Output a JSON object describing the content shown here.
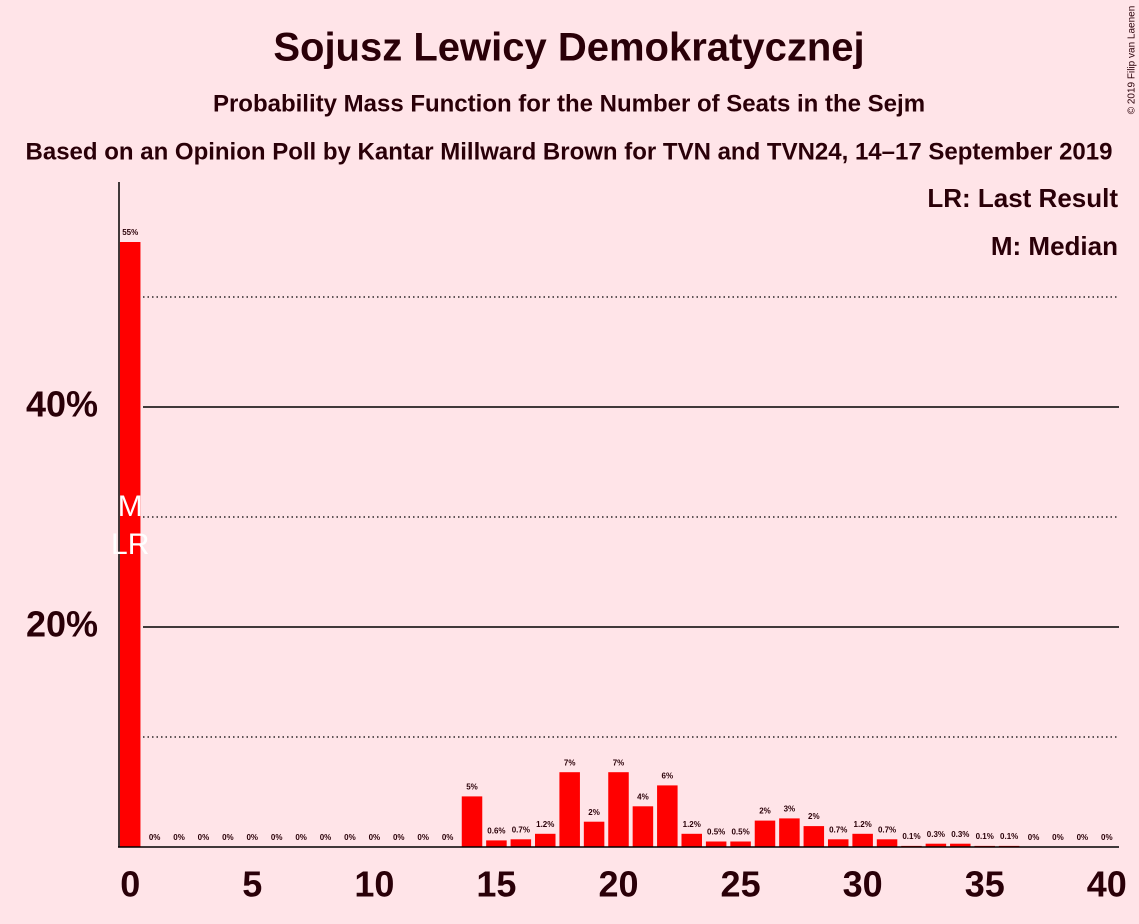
{
  "chart_data": {
    "type": "bar",
    "title": "Sojusz Lewicy Demokratycznej",
    "subtitle": "Probability Mass Function for the Number of Seats in the Sejm",
    "subtitle2": "Based on an Opinion Poll by Kantar Millward Brown for TVN and TVN24, 14–17 September 2019",
    "copyright": "© 2019 Filip van Laenen",
    "legend": [
      "LR: Last Result",
      "M: Median"
    ],
    "legend_position": "upper right",
    "median": {
      "x": 0,
      "label": "M"
    },
    "last_result": {
      "x": 0,
      "label": "LR"
    },
    "color": "#ff0000",
    "x": [
      0,
      1,
      2,
      3,
      4,
      5,
      6,
      7,
      8,
      9,
      10,
      11,
      12,
      13,
      14,
      15,
      16,
      17,
      18,
      19,
      20,
      21,
      22,
      23,
      24,
      25,
      26,
      27,
      28,
      29,
      30,
      31,
      32,
      33,
      34,
      35,
      36,
      37,
      38,
      39,
      40
    ],
    "values": [
      55,
      0,
      0,
      0,
      0,
      0,
      0,
      0,
      0,
      0,
      0,
      0,
      0,
      0,
      4.6,
      0.6,
      0.7,
      1.2,
      6.8,
      2.3,
      6.8,
      3.7,
      5.6,
      1.2,
      0.5,
      0.5,
      2.4,
      2.6,
      1.9,
      0.7,
      1.2,
      0.7,
      0.1,
      0.3,
      0.3,
      0.1,
      0.1,
      0,
      0,
      0,
      0
    ],
    "value_labels": [
      "55%",
      "0%",
      "0%",
      "0%",
      "0%",
      "0%",
      "0%",
      "0%",
      "0%",
      "0%",
      "0%",
      "0%",
      "0%",
      "0%",
      "5%",
      "0.6%",
      "0.7%",
      "1.2%",
      "7%",
      "2%",
      "7%",
      "4%",
      "6%",
      "1.2%",
      "0.5%",
      "0.5%",
      "2%",
      "3%",
      "2%",
      "0.7%",
      "1.2%",
      "0.7%",
      "0.1%",
      "0.3%",
      "0.3%",
      "0.1%",
      "0.1%",
      "0%",
      "0%",
      "0%",
      "0%"
    ],
    "xlim": [
      -0.5,
      40.5
    ],
    "xticks": [
      0,
      5,
      10,
      15,
      20,
      25,
      30,
      35,
      40
    ],
    "ylim": [
      0,
      60
    ],
    "yticks": [
      {
        "value": 20,
        "label": "20%"
      },
      {
        "value": 40,
        "label": "40%"
      }
    ],
    "minor_grid": [
      10,
      30,
      50
    ],
    "grid": true
  }
}
